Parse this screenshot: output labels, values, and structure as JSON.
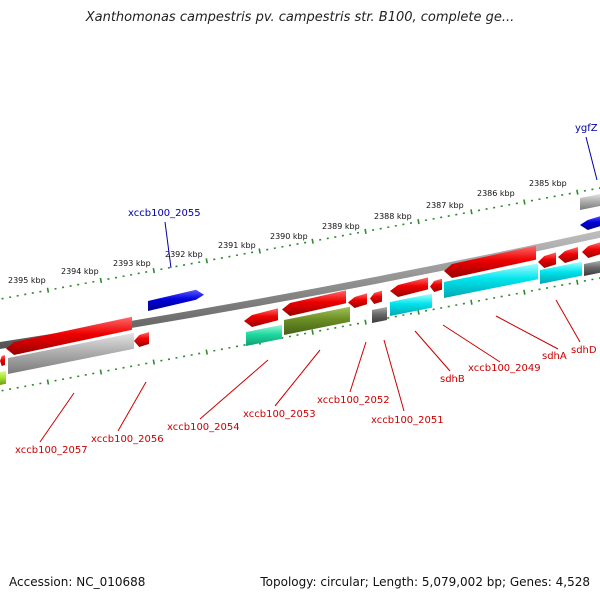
{
  "title": "Xanthomonas campestris pv. campestris str. B100, complete ge...",
  "footer": {
    "accession": "Accession: NC_010688",
    "summary": "Topology: circular; Length: 5,079,002 bp; Genes: 4,528"
  },
  "kbp_labels": [
    "2395 kbp",
    "2394 kbp",
    "2393 kbp",
    "2392 kbp",
    "2391 kbp",
    "2390 kbp",
    "2389 kbp",
    "2388 kbp",
    "2387 kbp",
    "2386 kbp",
    "2385 kbp"
  ],
  "gene_labels_top": [
    "xccb100_2055",
    "ygfZ"
  ],
  "gene_labels_bottom": [
    "xccb100_2057",
    "xccb100_2056",
    "xccb100_2054",
    "xccb100_2053",
    "xccb100_2052",
    "xccb100_2051",
    "sdhB",
    "xccb100_2049",
    "sdhA",
    "sdhD"
  ],
  "colors": {
    "red": "#e00000",
    "blue": "#0000dd",
    "cyan": "#00e5ee",
    "green_teal": "#1fd9a0",
    "olive": "#6b8e23",
    "gray": "#999999",
    "dark_gray": "#666666",
    "tick_green": "#2e8b2e",
    "top_label": "#0000aa",
    "bottom_label": "#cc0000"
  }
}
